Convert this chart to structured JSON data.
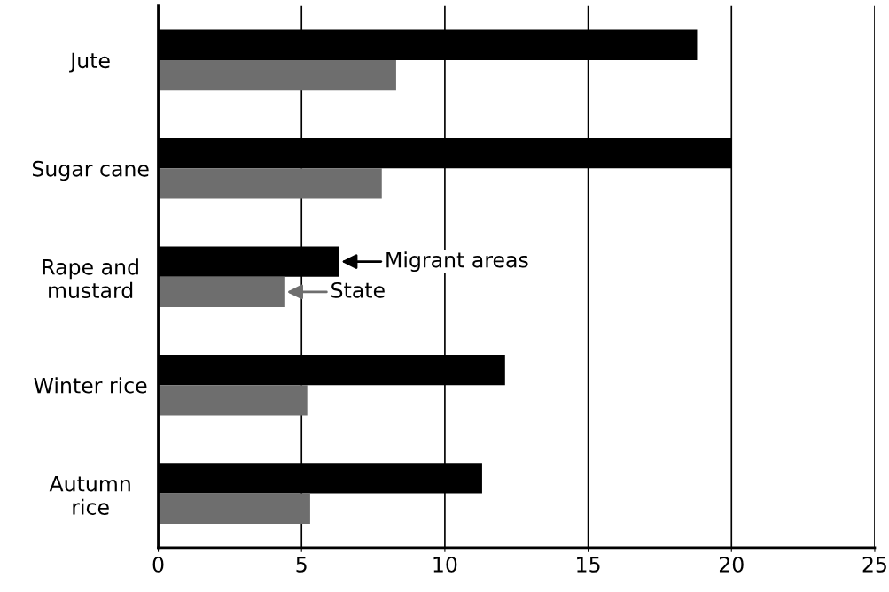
{
  "chart_data": {
    "type": "bar",
    "orientation": "horizontal",
    "categories": [
      "Jute",
      "Sugar cane",
      "Rape and\nmustard",
      "Winter rice",
      "Autumn\nrice"
    ],
    "series": [
      {
        "name": "Migrant areas",
        "color": "#000000",
        "values": [
          18.8,
          20.0,
          6.3,
          12.1,
          11.3
        ]
      },
      {
        "name": "State",
        "color": "#6e6e6e",
        "values": [
          8.3,
          7.8,
          4.4,
          5.2,
          5.3
        ]
      }
    ],
    "xlim": [
      0,
      25
    ],
    "xticks": [
      0,
      5,
      10,
      15,
      20,
      25
    ],
    "grid": "x",
    "legend": "center"
  }
}
